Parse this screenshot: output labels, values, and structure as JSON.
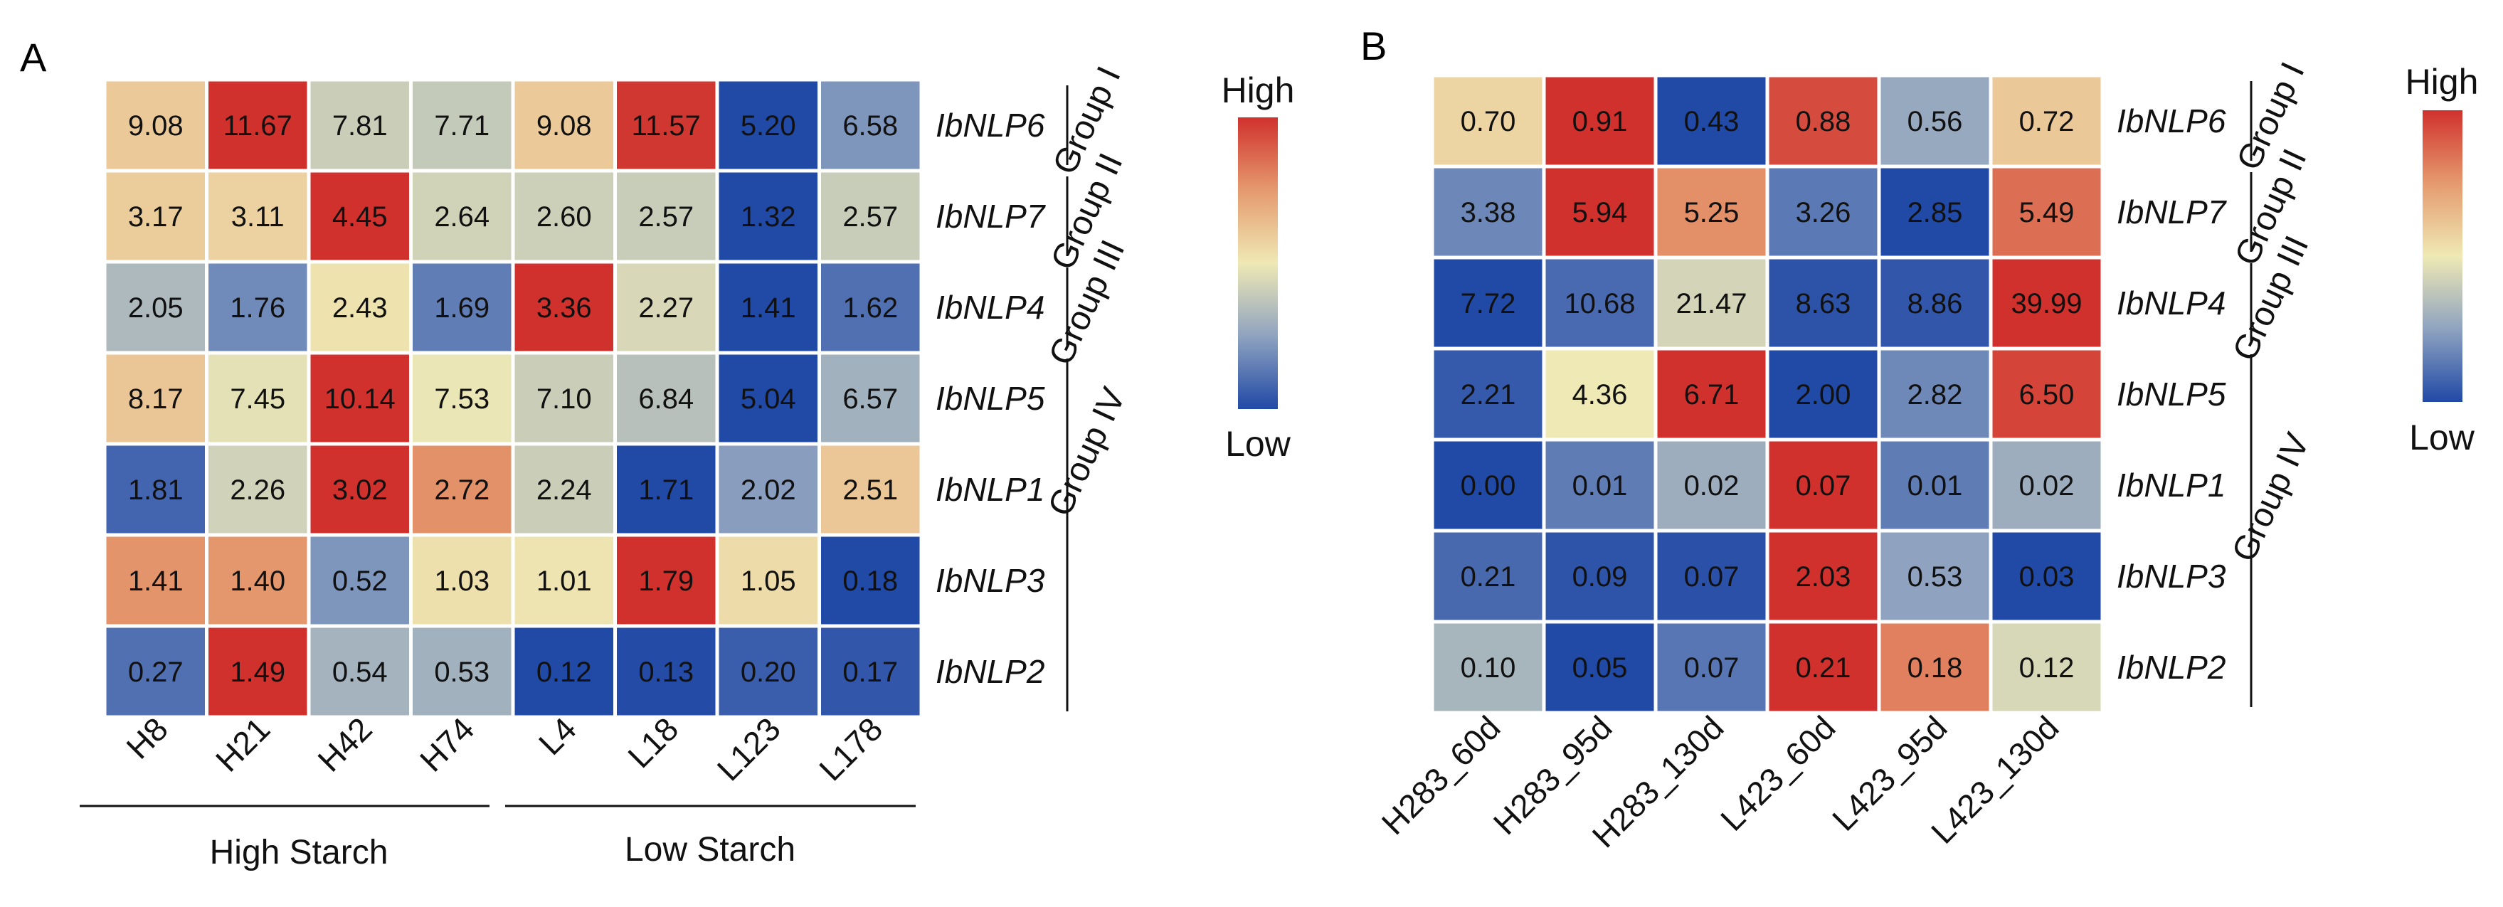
{
  "colors": {
    "low": "#2149a6",
    "mid": "#efe9b5",
    "high": "#d0312d"
  },
  "legend": {
    "high": "High",
    "low": "Low"
  },
  "chart_data": [
    {
      "type": "heatmap",
      "panel": "A",
      "rows": [
        "IbNLP6",
        "IbNLP7",
        "IbNLP4",
        "IbNLP5",
        "IbNLP1",
        "IbNLP3",
        "IbNLP2"
      ],
      "columns": [
        "H8",
        "H21",
        "H42",
        "H74",
        "L4",
        "L18",
        "L123",
        "L178"
      ],
      "values": [
        [
          9.08,
          11.67,
          7.81,
          7.71,
          9.08,
          11.57,
          5.2,
          6.58
        ],
        [
          3.17,
          3.11,
          4.45,
          2.64,
          2.6,
          2.57,
          1.32,
          2.57
        ],
        [
          2.05,
          1.76,
          2.43,
          1.69,
          3.36,
          2.27,
          1.41,
          1.62
        ],
        [
          8.17,
          7.45,
          10.14,
          7.53,
          7.1,
          6.84,
          5.04,
          6.57
        ],
        [
          1.81,
          2.26,
          3.02,
          2.72,
          2.24,
          1.71,
          2.02,
          2.51
        ],
        [
          1.41,
          1.4,
          0.52,
          1.03,
          1.01,
          1.79,
          1.05,
          0.18
        ],
        [
          0.27,
          1.49,
          0.54,
          0.53,
          0.12,
          0.13,
          0.2,
          0.17
        ]
      ],
      "labels": [
        [
          "9.08",
          "11.67",
          "7.81",
          "7.71",
          "9.08",
          "11.57",
          "5.20",
          "6.58"
        ],
        [
          "3.17",
          "3.11",
          "4.45",
          "2.64",
          "2.60",
          "2.57",
          "1.32",
          "2.57"
        ],
        [
          "2.05",
          "1.76",
          "2.43",
          "1.69",
          "3.36",
          "2.27",
          "1.41",
          "1.62"
        ],
        [
          "8.17",
          "7.45",
          "10.14",
          "7.53",
          "7.10",
          "6.84",
          "5.04",
          "6.57"
        ],
        [
          "1.81",
          "2.26",
          "3.02",
          "2.72",
          "2.24",
          "1.71",
          "2.02",
          "2.51"
        ],
        [
          "1.41",
          "1.40",
          "0.52",
          "1.03",
          "1.01",
          "1.79",
          "1.05",
          "0.18"
        ],
        [
          "0.27",
          "1.49",
          "0.54",
          "0.53",
          "0.12",
          "0.13",
          "0.20",
          "0.17"
        ]
      ],
      "groups": [
        {
          "name": "Group I",
          "rows": [
            0
          ]
        },
        {
          "name": "Group II",
          "rows": [
            1
          ]
        },
        {
          "name": "Group III",
          "rows": [
            2
          ]
        },
        {
          "name": "Group IV",
          "rows": [
            3,
            4,
            5,
            6
          ]
        }
      ],
      "column_groups": [
        {
          "name": "High Starch",
          "cols": [
            0,
            1,
            2,
            3
          ]
        },
        {
          "name": "Low Starch",
          "cols": [
            4,
            5,
            6,
            7
          ]
        }
      ],
      "color_scale": "row-normalized"
    },
    {
      "type": "heatmap",
      "panel": "B",
      "rows": [
        "IbNLP6",
        "IbNLP7",
        "IbNLP4",
        "IbNLP5",
        "IbNLP1",
        "IbNLP3",
        "IbNLP2"
      ],
      "columns": [
        "H283_60d",
        "H283_95d",
        "H283_130d",
        "L423_60d",
        "L423_95d",
        "L423_130d"
      ],
      "values": [
        [
          0.7,
          0.91,
          0.43,
          0.88,
          0.56,
          0.72
        ],
        [
          3.38,
          5.94,
          5.25,
          3.26,
          2.85,
          5.49
        ],
        [
          7.72,
          10.68,
          21.47,
          8.63,
          8.86,
          39.99
        ],
        [
          2.21,
          4.36,
          6.71,
          2.0,
          2.82,
          6.5
        ],
        [
          0.0,
          0.01,
          0.02,
          0.07,
          0.01,
          0.02
        ],
        [
          0.21,
          0.09,
          0.07,
          2.03,
          0.53,
          0.03
        ],
        [
          0.1,
          0.05,
          0.07,
          0.21,
          0.18,
          0.12
        ]
      ],
      "labels": [
        [
          "0.70",
          "0.91",
          "0.43",
          "0.88",
          "0.56",
          "0.72"
        ],
        [
          "3.38",
          "5.94",
          "5.25",
          "3.26",
          "2.85",
          "5.49"
        ],
        [
          "7.72",
          "10.68",
          "21.47",
          "8.63",
          "8.86",
          "39.99"
        ],
        [
          "2.21",
          "4.36",
          "6.71",
          "2.00",
          "2.82",
          "6.50"
        ],
        [
          "0.00",
          "0.01",
          "0.02",
          "0.07",
          "0.01",
          "0.02"
        ],
        [
          "0.21",
          "0.09",
          "0.07",
          "2.03",
          "0.53",
          "0.03"
        ],
        [
          "0.10",
          "0.05",
          "0.07",
          "0.21",
          "0.18",
          "0.12"
        ]
      ],
      "groups": [
        {
          "name": "Group I",
          "rows": [
            0
          ]
        },
        {
          "name": "Group II",
          "rows": [
            1
          ]
        },
        {
          "name": "Group III",
          "rows": [
            2
          ]
        },
        {
          "name": "Group IV",
          "rows": [
            3,
            4,
            5,
            6
          ]
        }
      ],
      "color_scale": "row-normalized"
    }
  ]
}
